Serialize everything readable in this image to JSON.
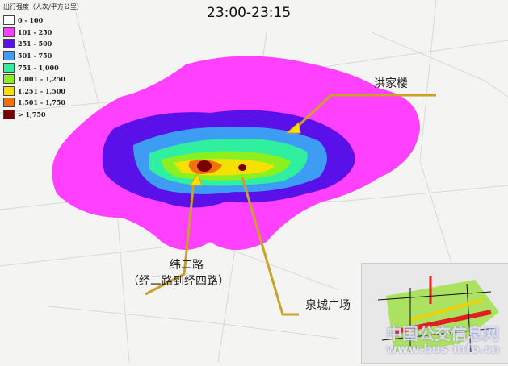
{
  "title": "23:00-23:15",
  "legend": {
    "title": "出行强度（人次/平方公里）",
    "items": [
      {
        "label": "0 - 100",
        "color": "#ffffff"
      },
      {
        "label": "101 - 250",
        "color": "#ff40ff"
      },
      {
        "label": "251 - 500",
        "color": "#5a10e8"
      },
      {
        "label": "501 - 750",
        "color": "#3d9df5"
      },
      {
        "label": "751 - 1,000",
        "color": "#30f0a0"
      },
      {
        "label": "1,001 - 1,250",
        "color": "#8cf020"
      },
      {
        "label": "1,251 - 1,500",
        "color": "#f5e000"
      },
      {
        "label": "1,501 - 1,750",
        "color": "#f07010"
      },
      {
        "label": "> 1,750",
        "color": "#7a0000"
      }
    ]
  },
  "callouts": {
    "hongjialou": "洪家楼",
    "weierlu": "纬二路",
    "weierlu_sub": "（经二路到经四路）",
    "quancheng": "泉城广场"
  },
  "watermark": {
    "name": "中国公交信息网",
    "url": "www.bus-info.cn"
  },
  "accent": "#c9a227"
}
